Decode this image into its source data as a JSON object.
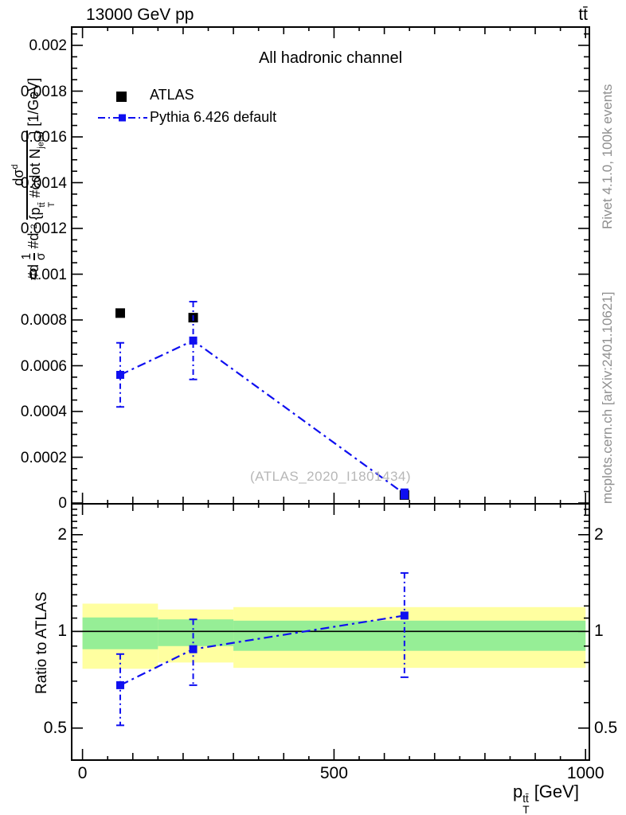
{
  "header": {
    "left": "13000 GeV pp",
    "right": "tt̄"
  },
  "panel_title": "All hadronic channel",
  "legend": [
    {
      "label": "ATLAS",
      "marker": "black-filled-square"
    },
    {
      "label": "Pythia 6.426 default",
      "marker": "blue-square-dashdot-line"
    }
  ],
  "watermark": "(ATLAS_2020_I1801434)",
  "side_notes": {
    "top_rotated": "Rivet 4.1.0,  100k events",
    "bottom_rotated": "mcplots.cern.ch [arXiv:2401.10621]"
  },
  "colors": {
    "mc_blue": "#0f0ff0",
    "band_yellow": "#ffffa0",
    "band_green": "#96ee96",
    "gray_note": "#8f8f8f",
    "watermark_gray": "#b7b7b7",
    "frame_black": "#000000"
  },
  "ylabel_main_parts": {
    "d1": "#d",
    "frac1_num": "1",
    "frac1_den": "σ",
    "d2": "#d",
    "sup2": "2",
    "num_base": "dσ",
    "num_sup": "d",
    "den_open": "{p",
    "den_sup": "tt̄",
    "den_sub": "T",
    "den_mid": " #cdot N",
    "den_sub2": "jets",
    "den_close": "}",
    "unit": "[1/GeV]"
  },
  "axes": {
    "x": {
      "label_base": "p",
      "label_sup": "tt̄",
      "label_sub": "T",
      "label_unit": " [GeV]",
      "tick_values": [
        0,
        500,
        1000
      ],
      "tick_labels": [
        "0",
        "500",
        "1000"
      ],
      "minor_step": 50,
      "range_gev": [
        0,
        1000
      ]
    },
    "y_main": {
      "tick_values": [
        0,
        0.0002,
        0.0004,
        0.0006,
        0.0008,
        0.001,
        0.0012,
        0.0014,
        0.0016,
        0.0018,
        0.002
      ],
      "tick_labels": [
        "0",
        "0.0002",
        "0.0004",
        "0.0006",
        "0.0008",
        "0.001",
        "0.0012",
        "0.0014",
        "0.0016",
        "0.0018",
        "0.002"
      ],
      "minor_step": 5e-05,
      "range": [
        0,
        0.00208
      ]
    },
    "y_ratio": {
      "label": "Ratio to ATLAS",
      "scale": "log",
      "tick_values": [
        0.5,
        1,
        2
      ],
      "tick_labels": [
        "0.5",
        "1",
        "2"
      ],
      "minor_values": [
        0.4,
        0.6,
        0.7,
        0.8,
        0.9,
        1.1,
        1.2,
        1.3,
        1.4,
        1.5,
        1.6,
        1.7,
        1.8,
        1.9,
        2.1,
        2.2,
        2.3,
        2.4
      ],
      "range": [
        0.4,
        2.5
      ]
    }
  },
  "chart_data": [
    {
      "type": "scatter",
      "panel": "main",
      "title": "All hadronic channel",
      "xlabel": "pT(ttbar) [GeV]",
      "ylabel": "1/sigma d2sigma / d pT(ttbar) dNjets [1/GeV]",
      "xlim": [
        0,
        1000
      ],
      "ylim": [
        0,
        0.00208
      ],
      "x_bins": [
        [
          0,
          150
        ],
        [
          150,
          300
        ],
        [
          300,
          1000
        ]
      ],
      "series": [
        {
          "name": "ATLAS",
          "marker": "filled-square",
          "color": "#000000",
          "x": [
            75,
            220,
            640
          ],
          "y": [
            0.00083,
            0.00081,
            3.5e-05
          ]
        },
        {
          "name": "Pythia 6.426 default",
          "marker": "filled-square",
          "color": "#0f0ff0",
          "linestyle": "dashdot",
          "x": [
            75,
            220,
            640
          ],
          "y": [
            0.00056,
            0.00071,
            4e-05
          ],
          "yerr": [
            0.00014,
            0.00017,
            2e-05
          ]
        }
      ]
    },
    {
      "type": "ratio",
      "panel": "ratio",
      "ylabel": "Ratio to ATLAS",
      "yscale": "log",
      "ylim": [
        0.4,
        2.5
      ],
      "reference_line": 1.0,
      "bands": [
        {
          "x": [
            0,
            150
          ],
          "yellow": [
            0.765,
            1.22
          ],
          "green": [
            0.88,
            1.105
          ]
        },
        {
          "x": [
            150,
            300
          ],
          "yellow": [
            0.8,
            1.17
          ],
          "green": [
            0.9,
            1.09
          ]
        },
        {
          "x": [
            300,
            1000
          ],
          "yellow": [
            0.77,
            1.19
          ],
          "green": [
            0.87,
            1.08
          ]
        }
      ],
      "series": [
        {
          "name": "Pythia 6.426 default / ATLAS",
          "color": "#0f0ff0",
          "linestyle": "dashdot",
          "x": [
            75,
            220,
            640
          ],
          "y": [
            0.68,
            0.88,
            1.12
          ],
          "ylo": [
            0.51,
            0.68,
            0.72
          ],
          "yhi": [
            0.85,
            1.09,
            1.52
          ]
        }
      ]
    }
  ]
}
